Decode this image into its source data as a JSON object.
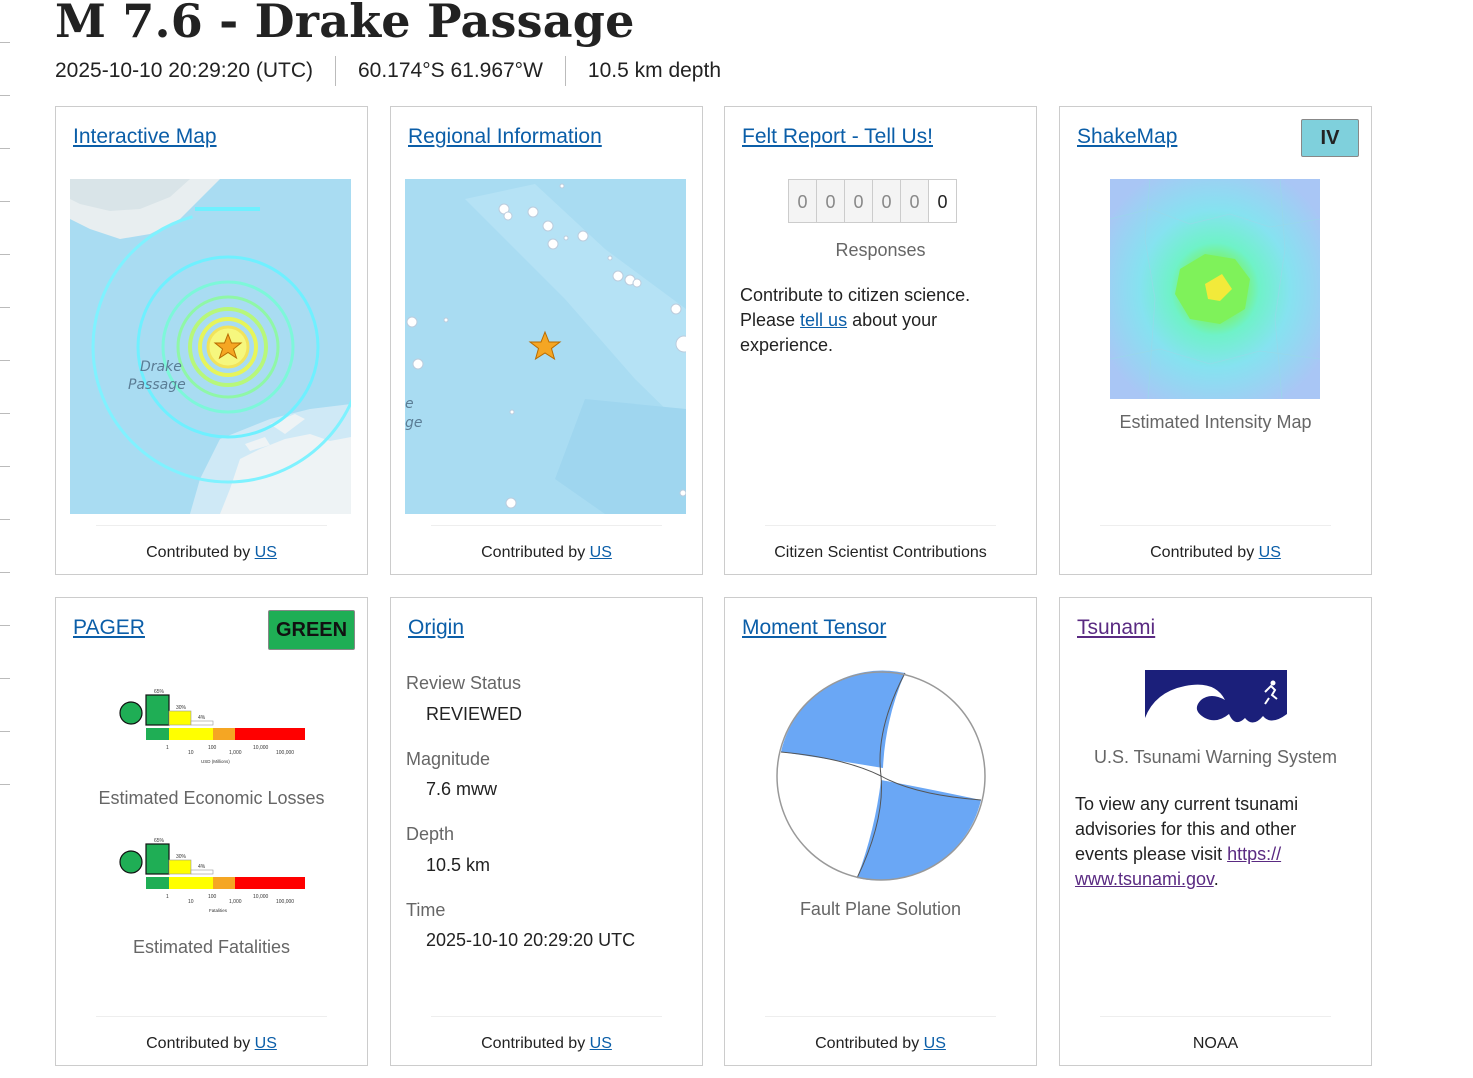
{
  "event": {
    "title": "M 7.6 - Drake Passage",
    "time": "2025-10-10 20:29:20 (UTC)",
    "location": "60.174°S 61.967°W",
    "depth": "10.5 km depth"
  },
  "cards": {
    "interactive_map": {
      "title": "Interactive Map",
      "map_label_line1": "Drake",
      "map_label_line2": "Passage",
      "footer_prefix": "Contributed by",
      "footer_link": "US"
    },
    "regional": {
      "title": "Regional Information",
      "map_label_line1": "e",
      "map_label_line2": "ge",
      "footer_prefix": "Contributed by",
      "footer_link": "US"
    },
    "felt": {
      "title": "Felt Report - Tell Us!",
      "counter_digits": [
        "0",
        "0",
        "0",
        "0",
        "0",
        "0"
      ],
      "responses_label": "Responses",
      "text_before": "Contribute to citizen science. Please ",
      "link": "tell us",
      "text_after": " about your experience.",
      "footer": "Citizen Scientist Contributions"
    },
    "shakemap": {
      "title": "ShakeMap",
      "badge": "IV",
      "badge_color": "#7fd0dc",
      "caption": "Estimated Intensity Map",
      "footer_prefix": "Contributed by",
      "footer_link": "US"
    },
    "pager": {
      "title": "PAGER",
      "badge": "GREEN",
      "badge_color": "#1fae55",
      "losses_caption": "Estimated Economic Losses",
      "fatalities_caption": "Estimated Fatalities",
      "histogram": {
        "percent_labels": [
          "65%",
          "30%",
          "4%"
        ],
        "axis_labels": [
          "1",
          "10",
          "100",
          "1,000",
          "10,000",
          "100,000"
        ],
        "losses_axis_title": "USD (Millions)",
        "fatalities_axis_title": "Fatalities",
        "alert_colors": [
          "#1fae55",
          "#ffff00",
          "#f5a623",
          "#ff0000"
        ]
      },
      "footer_prefix": "Contributed by",
      "footer_link": "US"
    },
    "origin": {
      "title": "Origin",
      "review_label": "Review Status",
      "review_value": "REVIEWED",
      "magnitude_label": "Magnitude",
      "magnitude_value": "7.6 mww",
      "depth_label": "Depth",
      "depth_value": "10.5 km",
      "time_label": "Time",
      "time_value": "2025-10-10 20:29:20 UTC",
      "footer_prefix": "Contributed by",
      "footer_link": "US"
    },
    "moment_tensor": {
      "title": "Moment Tensor",
      "caption": "Fault Plane Solution",
      "beachball_color": "#6aa7f5",
      "footer_prefix": "Contributed by",
      "footer_link": "US"
    },
    "tsunami": {
      "title": "Tsunami",
      "logo_caption": "U.S. Tsunami Warning System",
      "text_before": "To view any current tsunami advisories for this and other events please visit ",
      "link": "https:// www.tsunami.gov",
      "text_after": ".",
      "footer": "NOAA"
    }
  }
}
